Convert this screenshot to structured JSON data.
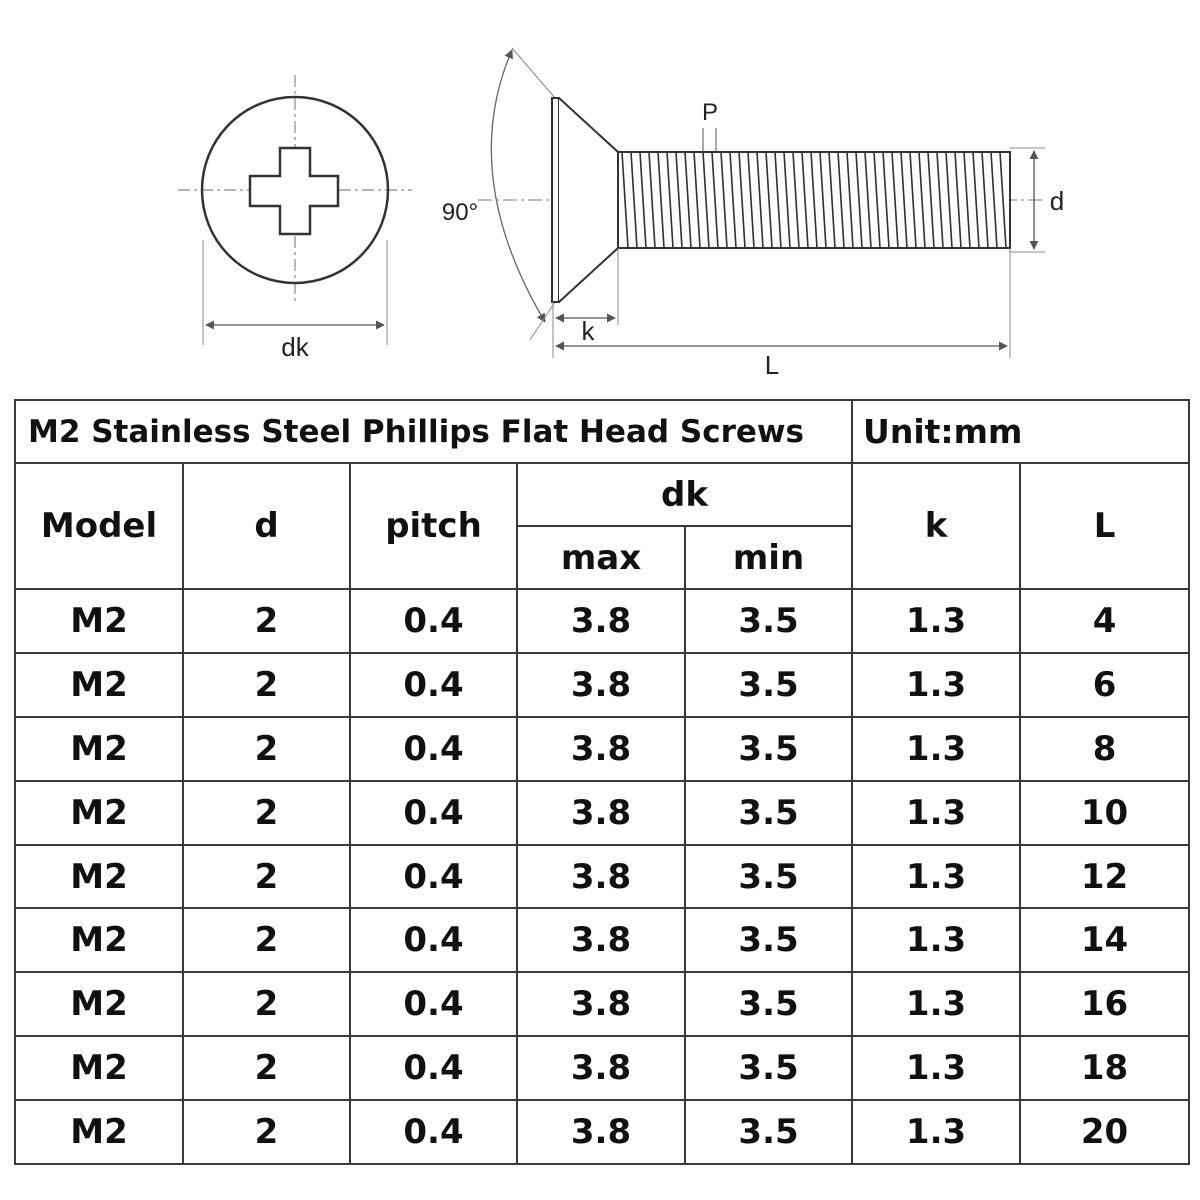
{
  "diagram": {
    "labels": {
      "dk": "dk",
      "angle": "90°",
      "pitch": "P",
      "d": "d",
      "k": "k",
      "L": "L"
    }
  },
  "table": {
    "title": "M2 Stainless Steel Phillips Flat Head Screws",
    "unit": "Unit:mm",
    "headers": {
      "model": "Model",
      "d": "d",
      "pitch": "pitch",
      "dk": "dk",
      "dk_max": "max",
      "dk_min": "min",
      "k": "k",
      "L": "L"
    },
    "rows": [
      {
        "model": "M2",
        "d": "2",
        "pitch": "0.4",
        "dk_max": "3.8",
        "dk_min": "3.5",
        "k": "1.3",
        "L": "4"
      },
      {
        "model": "M2",
        "d": "2",
        "pitch": "0.4",
        "dk_max": "3.8",
        "dk_min": "3.5",
        "k": "1.3",
        "L": "6"
      },
      {
        "model": "M2",
        "d": "2",
        "pitch": "0.4",
        "dk_max": "3.8",
        "dk_min": "3.5",
        "k": "1.3",
        "L": "8"
      },
      {
        "model": "M2",
        "d": "2",
        "pitch": "0.4",
        "dk_max": "3.8",
        "dk_min": "3.5",
        "k": "1.3",
        "L": "10"
      },
      {
        "model": "M2",
        "d": "2",
        "pitch": "0.4",
        "dk_max": "3.8",
        "dk_min": "3.5",
        "k": "1.3",
        "L": "12"
      },
      {
        "model": "M2",
        "d": "2",
        "pitch": "0.4",
        "dk_max": "3.8",
        "dk_min": "3.5",
        "k": "1.3",
        "L": "14"
      },
      {
        "model": "M2",
        "d": "2",
        "pitch": "0.4",
        "dk_max": "3.8",
        "dk_min": "3.5",
        "k": "1.3",
        "L": "16"
      },
      {
        "model": "M2",
        "d": "2",
        "pitch": "0.4",
        "dk_max": "3.8",
        "dk_min": "3.5",
        "k": "1.3",
        "L": "18"
      },
      {
        "model": "M2",
        "d": "2",
        "pitch": "0.4",
        "dk_max": "3.8",
        "dk_min": "3.5",
        "k": "1.3",
        "L": "20"
      }
    ]
  }
}
